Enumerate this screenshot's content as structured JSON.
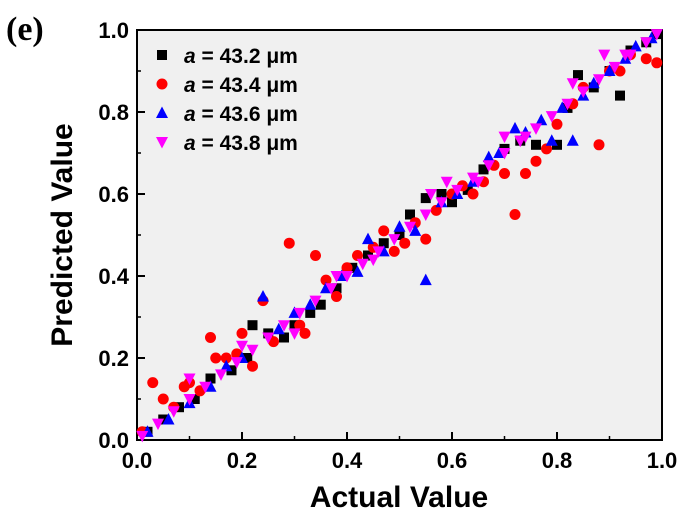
{
  "panel_label": "(e)",
  "chart_data": {
    "type": "scatter",
    "xlabel": "Actual Value",
    "ylabel": "Predicted Value",
    "xlim": [
      0.0,
      1.0
    ],
    "ylim": [
      0.0,
      1.0
    ],
    "xticks": [
      "0.0",
      "0.2",
      "0.4",
      "0.6",
      "0.8",
      "1.0"
    ],
    "yticks": [
      "0.0",
      "0.2",
      "0.4",
      "0.6",
      "0.8",
      "1.0"
    ],
    "grid": false,
    "legend_position": "top-left",
    "series": [
      {
        "name": "a = 43.2 μm",
        "name_var": "a",
        "name_rest": " = 43.2 μm",
        "color": "#000000",
        "marker": "square",
        "points": [
          [
            0.02,
            0.02
          ],
          [
            0.05,
            0.05
          ],
          [
            0.08,
            0.08
          ],
          [
            0.11,
            0.1
          ],
          [
            0.14,
            0.15
          ],
          [
            0.18,
            0.17
          ],
          [
            0.21,
            0.2
          ],
          [
            0.22,
            0.28
          ],
          [
            0.25,
            0.26
          ],
          [
            0.28,
            0.25
          ],
          [
            0.3,
            0.28
          ],
          [
            0.33,
            0.31
          ],
          [
            0.35,
            0.33
          ],
          [
            0.38,
            0.37
          ],
          [
            0.41,
            0.42
          ],
          [
            0.44,
            0.45
          ],
          [
            0.47,
            0.48
          ],
          [
            0.5,
            0.5
          ],
          [
            0.52,
            0.55
          ],
          [
            0.55,
            0.59
          ],
          [
            0.58,
            0.6
          ],
          [
            0.6,
            0.58
          ],
          [
            0.63,
            0.61
          ],
          [
            0.66,
            0.66
          ],
          [
            0.7,
            0.71
          ],
          [
            0.73,
            0.73
          ],
          [
            0.76,
            0.72
          ],
          [
            0.8,
            0.72
          ],
          [
            0.82,
            0.81
          ],
          [
            0.84,
            0.89
          ],
          [
            0.87,
            0.86
          ],
          [
            0.9,
            0.9
          ],
          [
            0.92,
            0.84
          ],
          [
            0.94,
            0.95
          ],
          [
            0.97,
            0.97
          ],
          [
            0.99,
            0.99
          ]
        ]
      },
      {
        "name": "a = 43.4 μm",
        "name_var": "a",
        "name_rest": " = 43.4 μm",
        "color": "#ff0000",
        "marker": "circle",
        "points": [
          [
            0.01,
            0.02
          ],
          [
            0.03,
            0.14
          ],
          [
            0.05,
            0.1
          ],
          [
            0.07,
            0.08
          ],
          [
            0.09,
            0.13
          ],
          [
            0.1,
            0.14
          ],
          [
            0.12,
            0.12
          ],
          [
            0.14,
            0.25
          ],
          [
            0.15,
            0.2
          ],
          [
            0.17,
            0.2
          ],
          [
            0.19,
            0.21
          ],
          [
            0.2,
            0.26
          ],
          [
            0.22,
            0.18
          ],
          [
            0.24,
            0.34
          ],
          [
            0.26,
            0.24
          ],
          [
            0.29,
            0.48
          ],
          [
            0.31,
            0.28
          ],
          [
            0.32,
            0.26
          ],
          [
            0.34,
            0.45
          ],
          [
            0.36,
            0.39
          ],
          [
            0.38,
            0.35
          ],
          [
            0.4,
            0.42
          ],
          [
            0.42,
            0.45
          ],
          [
            0.45,
            0.47
          ],
          [
            0.47,
            0.51
          ],
          [
            0.49,
            0.46
          ],
          [
            0.51,
            0.48
          ],
          [
            0.53,
            0.53
          ],
          [
            0.55,
            0.49
          ],
          [
            0.57,
            0.56
          ],
          [
            0.6,
            0.6
          ],
          [
            0.62,
            0.62
          ],
          [
            0.64,
            0.6
          ],
          [
            0.66,
            0.63
          ],
          [
            0.68,
            0.67
          ],
          [
            0.7,
            0.65
          ],
          [
            0.72,
            0.55
          ],
          [
            0.74,
            0.65
          ],
          [
            0.76,
            0.68
          ],
          [
            0.78,
            0.71
          ],
          [
            0.8,
            0.77
          ],
          [
            0.83,
            0.82
          ],
          [
            0.85,
            0.86
          ],
          [
            0.88,
            0.72
          ],
          [
            0.9,
            0.9
          ],
          [
            0.92,
            0.9
          ],
          [
            0.94,
            0.94
          ],
          [
            0.97,
            0.93
          ],
          [
            0.99,
            0.92
          ]
        ]
      },
      {
        "name": "a = 43.6 μm",
        "name_var": "a",
        "name_rest": " = 43.6 μm",
        "color": "#0000ff",
        "marker": "triangle-up",
        "points": [
          [
            0.02,
            0.02
          ],
          [
            0.06,
            0.05
          ],
          [
            0.1,
            0.09
          ],
          [
            0.14,
            0.13
          ],
          [
            0.17,
            0.18
          ],
          [
            0.2,
            0.2
          ],
          [
            0.24,
            0.35
          ],
          [
            0.27,
            0.27
          ],
          [
            0.3,
            0.31
          ],
          [
            0.33,
            0.33
          ],
          [
            0.36,
            0.37
          ],
          [
            0.39,
            0.4
          ],
          [
            0.42,
            0.41
          ],
          [
            0.44,
            0.49
          ],
          [
            0.47,
            0.46
          ],
          [
            0.5,
            0.52
          ],
          [
            0.53,
            0.51
          ],
          [
            0.55,
            0.39
          ],
          [
            0.58,
            0.58
          ],
          [
            0.61,
            0.6
          ],
          [
            0.64,
            0.63
          ],
          [
            0.67,
            0.69
          ],
          [
            0.69,
            0.7
          ],
          [
            0.72,
            0.76
          ],
          [
            0.74,
            0.75
          ],
          [
            0.77,
            0.78
          ],
          [
            0.79,
            0.73
          ],
          [
            0.81,
            0.81
          ],
          [
            0.83,
            0.73
          ],
          [
            0.85,
            0.84
          ],
          [
            0.87,
            0.87
          ],
          [
            0.9,
            0.9
          ],
          [
            0.93,
            0.93
          ],
          [
            0.95,
            0.96
          ],
          [
            0.98,
            0.98
          ]
        ]
      },
      {
        "name": "a = 43.8 μm",
        "name_var": "a",
        "name_rest": " = 43.8 μm",
        "color": "#ff00ff",
        "marker": "triangle-down",
        "points": [
          [
            0.01,
            0.01
          ],
          [
            0.04,
            0.04
          ],
          [
            0.07,
            0.07
          ],
          [
            0.1,
            0.1
          ],
          [
            0.13,
            0.13
          ],
          [
            0.16,
            0.16
          ],
          [
            0.19,
            0.19
          ],
          [
            0.22,
            0.22
          ],
          [
            0.25,
            0.25
          ],
          [
            0.28,
            0.28
          ],
          [
            0.31,
            0.31
          ],
          [
            0.34,
            0.34
          ],
          [
            0.37,
            0.37
          ],
          [
            0.4,
            0.4
          ],
          [
            0.43,
            0.43
          ],
          [
            0.46,
            0.46
          ],
          [
            0.49,
            0.49
          ],
          [
            0.52,
            0.52
          ],
          [
            0.55,
            0.55
          ],
          [
            0.58,
            0.58
          ],
          [
            0.61,
            0.61
          ],
          [
            0.64,
            0.64
          ],
          [
            0.67,
            0.67
          ],
          [
            0.7,
            0.7
          ],
          [
            0.73,
            0.73
          ],
          [
            0.76,
            0.76
          ],
          [
            0.79,
            0.79
          ],
          [
            0.82,
            0.82
          ],
          [
            0.85,
            0.85
          ],
          [
            0.88,
            0.88
          ],
          [
            0.91,
            0.91
          ],
          [
            0.94,
            0.94
          ],
          [
            0.97,
            0.97
          ],
          [
            0.99,
            0.99
          ],
          [
            0.1,
            0.15
          ],
          [
            0.2,
            0.23
          ],
          [
            0.3,
            0.26
          ],
          [
            0.45,
            0.44
          ],
          [
            0.56,
            0.6
          ],
          [
            0.59,
            0.63
          ],
          [
            0.7,
            0.74
          ],
          [
            0.74,
            0.74
          ],
          [
            0.83,
            0.87
          ],
          [
            0.89,
            0.94
          ],
          [
            0.93,
            0.94
          ],
          [
            0.38,
            0.4
          ],
          [
            0.65,
            0.63
          ]
        ]
      }
    ]
  }
}
